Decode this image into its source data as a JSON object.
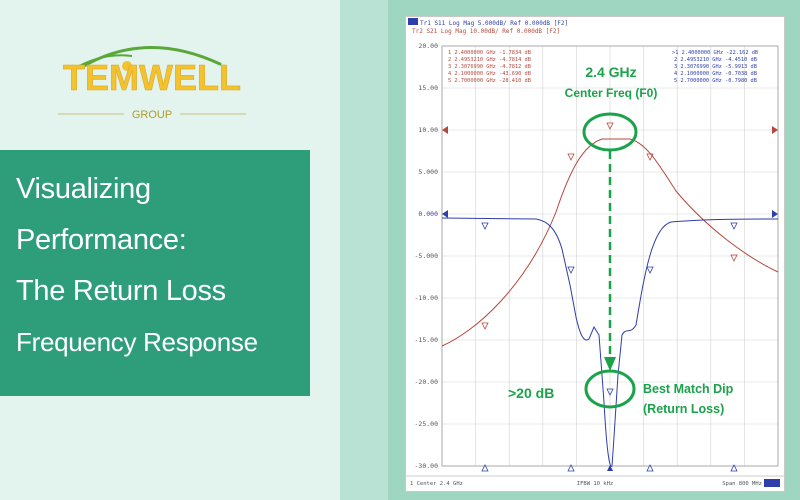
{
  "brand": {
    "name": "TEMWELL",
    "group": "GROUP"
  },
  "banner": {
    "lines": [
      "Visualizing",
      "Performance:",
      "The Return Loss",
      "Frequency Response"
    ]
  },
  "analyzer": {
    "trace_headers": [
      "Tr1  S11 Log Mag 5.000dB/ Ref 0.000dB [F2]",
      "Tr2  S21 Log Mag 10.00dB/ Ref 0.000dB [F2]"
    ],
    "y_ticks": [
      "20.00",
      "15.00",
      "10.00",
      "5.000",
      "0.000",
      "-5.000",
      "-10.00",
      "-15.00",
      "-20.00",
      "-25.00",
      "-30.00"
    ],
    "marker_table_left": [
      "1  2.4000000 GHz -1.7834 dB",
      "2  2.4953210 GHz -4.7814 dB",
      "3  2.3076990 GHz -4.7812 dB",
      "4  2.1000000 GHz -43.690 dB",
      "5  2.7000000 GHz -28.410 dB"
    ],
    "marker_table_right": [
      ">1  2.4000000 GHz -22.162 dB",
      "2  2.4953210 GHz -4.4510 dB",
      "3  2.3076990 GHz -5.9913 dB",
      "4  2.1000000 GHz -0.7038 dB",
      "5  2.7000000 GHz -0.7980 dB"
    ],
    "footer": {
      "left": "1  Center 2.4 GHz",
      "middle": "IFBW 10 kHz",
      "right": "Span 800 MHz"
    },
    "annotations": {
      "freq": "2.4 GHz",
      "center": "Center Freq (F0)",
      "db": ">20 dB",
      "match1": "Best Match Dip",
      "match2": "(Return Loss)"
    }
  },
  "colors": {
    "accent": "#2e9e7a",
    "highlight": "#1aa34a",
    "trace_s21": "#b5483e",
    "trace_s11": "#2f3ea8"
  }
}
